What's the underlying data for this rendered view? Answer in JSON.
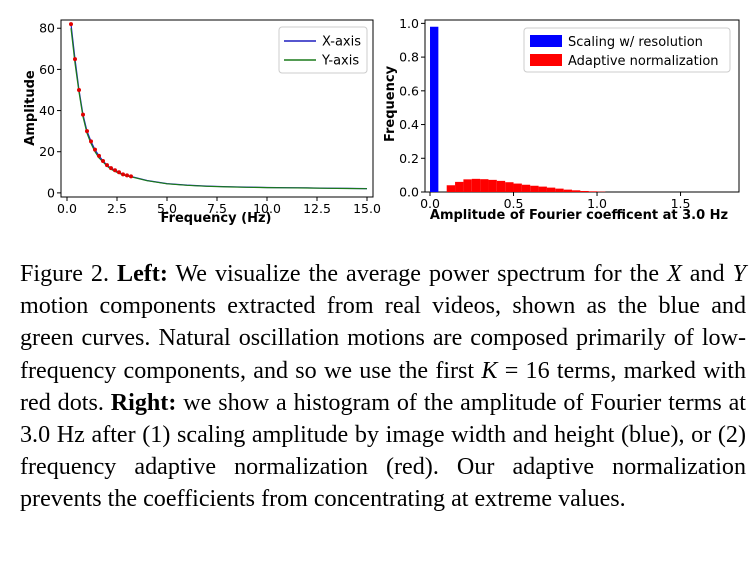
{
  "chart_data": [
    {
      "type": "line",
      "xlabel": "Frequency (Hz)",
      "ylabel": "Amplitude",
      "xlim": [
        -0.3,
        15.3
      ],
      "ylim": [
        -2,
        84
      ],
      "xticks": [
        0.0,
        2.5,
        5.0,
        7.5,
        10.0,
        12.5,
        15.0
      ],
      "xtick_labels": [
        "0.0",
        "2.5",
        "5.0",
        "7.5",
        "10.0",
        "12.5",
        "15.0"
      ],
      "yticks": [
        0,
        20,
        40,
        60,
        80
      ],
      "ytick_labels": [
        "0",
        "20",
        "40",
        "60",
        "80"
      ],
      "legend": "top-right",
      "series": [
        {
          "name": "X-axis",
          "color": "#1f1fbf",
          "x": [
            0.2,
            0.4,
            0.6,
            0.8,
            1.0,
            1.2,
            1.4,
            1.6,
            1.8,
            2.0,
            2.2,
            2.4,
            2.6,
            2.8,
            3.0,
            3.2,
            4,
            5,
            6,
            7,
            8,
            9,
            10,
            11,
            12,
            13,
            14,
            15
          ],
          "y": [
            82,
            65,
            50,
            38,
            30,
            25,
            21,
            18,
            15.5,
            13.5,
            12,
            11,
            10,
            9,
            8.5,
            8,
            6,
            4.5,
            3.8,
            3.3,
            3,
            2.8,
            2.6,
            2.5,
            2.4,
            2.3,
            2.2,
            2.1
          ]
        },
        {
          "name": "Y-axis",
          "color": "#1a7a1a",
          "x": [
            0.2,
            0.4,
            0.6,
            0.8,
            1.0,
            1.2,
            1.4,
            1.6,
            1.8,
            2.0,
            2.2,
            2.4,
            2.6,
            2.8,
            3.0,
            3.2,
            4,
            5,
            6,
            7,
            8,
            9,
            10,
            11,
            12,
            13,
            14,
            15
          ],
          "y": [
            80,
            63,
            49,
            37,
            29,
            24,
            20,
            17,
            15,
            13,
            11.5,
            10.5,
            9.5,
            8.8,
            8.2,
            7.8,
            5.9,
            4.4,
            3.7,
            3.2,
            2.9,
            2.7,
            2.55,
            2.45,
            2.35,
            2.25,
            2.15,
            2.05
          ]
        }
      ],
      "markers": {
        "color": "#e00000",
        "x": [
          0.2,
          0.4,
          0.6,
          0.8,
          1.0,
          1.2,
          1.4,
          1.6,
          1.8,
          2.0,
          2.2,
          2.4,
          2.6,
          2.8,
          3.0,
          3.2
        ],
        "y": [
          82,
          65,
          50,
          38,
          30,
          25,
          21,
          18,
          15.5,
          13.5,
          12,
          11,
          10,
          9,
          8.5,
          8
        ]
      }
    },
    {
      "type": "bar",
      "xlabel": "Amplitude of Fourier coefficent at 3.0 Hz",
      "ylabel": "Frequency",
      "xlim": [
        -0.03,
        1.85
      ],
      "ylim": [
        0,
        1.02
      ],
      "xticks": [
        0.0,
        0.5,
        1.0,
        1.5
      ],
      "xtick_labels": [
        "0.0",
        "0.5",
        "1.0",
        "1.5"
      ],
      "yticks": [
        0.0,
        0.2,
        0.4,
        0.6,
        0.8,
        1.0
      ],
      "ytick_labels": [
        "0.0",
        "0.2",
        "0.4",
        "0.6",
        "0.8",
        "1.0"
      ],
      "legend": "top-right",
      "bin_width": 0.05,
      "series": [
        {
          "name": "Scaling w/ resolution",
          "color": "#0000ff",
          "bins": [
            0.0
          ],
          "values": [
            0.98
          ]
        },
        {
          "name": "Adaptive normalization",
          "color": "#ff0000",
          "bins": [
            0.1,
            0.15,
            0.2,
            0.25,
            0.3,
            0.35,
            0.4,
            0.45,
            0.5,
            0.55,
            0.6,
            0.65,
            0.7,
            0.75,
            0.8,
            0.85,
            0.9,
            0.95,
            1.0
          ],
          "values": [
            0.04,
            0.06,
            0.075,
            0.078,
            0.076,
            0.072,
            0.066,
            0.058,
            0.05,
            0.043,
            0.037,
            0.032,
            0.026,
            0.02,
            0.014,
            0.01,
            0.006,
            0.004,
            0.002
          ]
        }
      ]
    }
  ],
  "caption": {
    "figure_label": "Figure 2.",
    "left_label": "Left:",
    "left_text_1": "We visualize the average power spectrum for the",
    "var_x": "X",
    "and_word": "and",
    "var_y": "Y",
    "left_text_2": "motion components extracted from real videos, shown as the blue and green curves. Natural oscillation motions are composed primarily of low-frequency components, and so we use the first",
    "var_k": "K",
    "left_text_3": "= 16 terms, marked with red dots.",
    "right_label": "Right:",
    "right_text": "we show a histogram of the amplitude of Fourier terms at 3.0 Hz after (1) scaling amplitude by image width and height (blue), or (2) frequency adaptive normalization (red). Our adaptive normalization prevents the coefficients from concentrating at extreme values."
  }
}
